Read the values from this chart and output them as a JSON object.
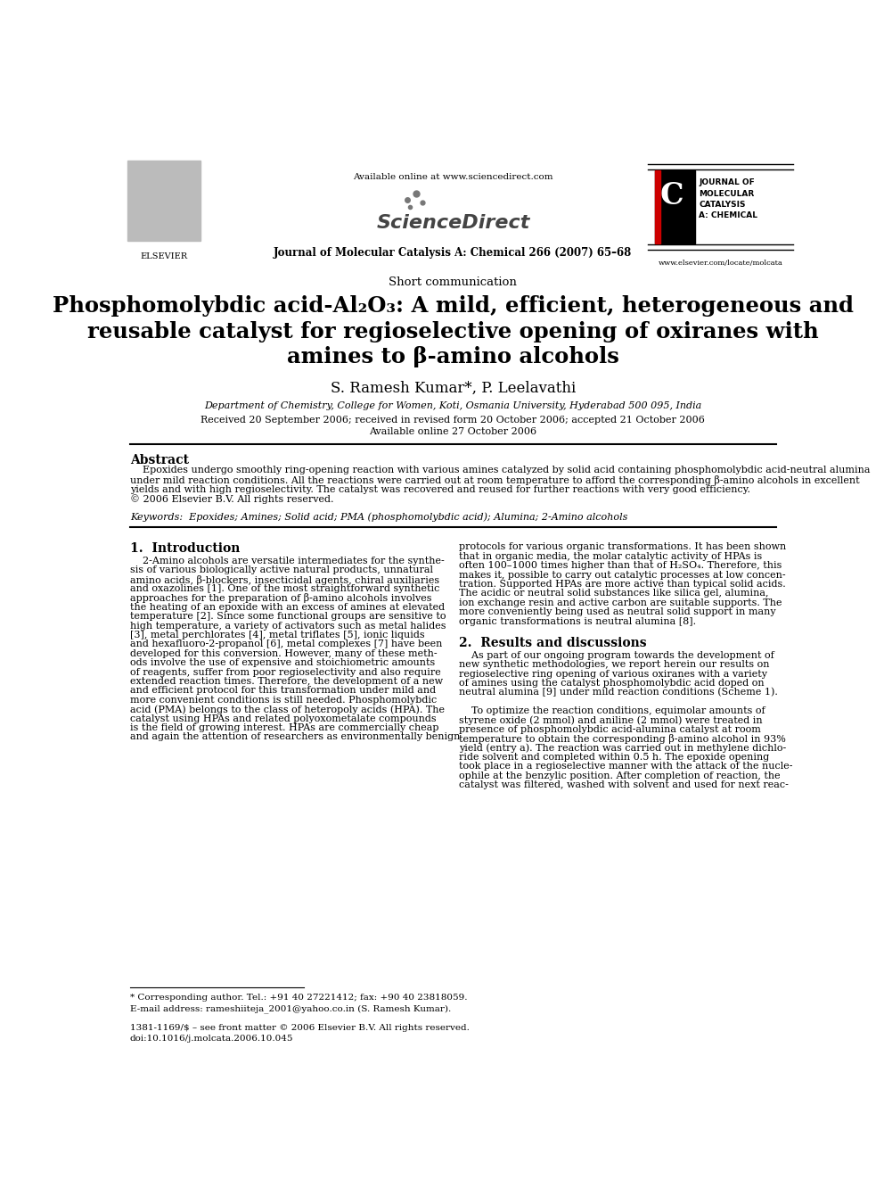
{
  "page_width": 9.92,
  "page_height": 13.23,
  "bg_color": "#ffffff",
  "header": {
    "available_online": "Available online at www.sciencedirect.com",
    "journal_line": "Journal of Molecular Catalysis A: Chemical 266 (2007) 65–68",
    "elsevier_label": "ELSEVIER",
    "journal_label_lines": [
      "JOURNAL OF",
      "MOLECULAR",
      "CATALYSIS",
      "A: CHEMICAL"
    ],
    "website": "www.elsevier.com/locate/molcata"
  },
  "article_type": "Short communication",
  "title_line1": "Phosphomolybdic acid-Al₂O₃: A mild, efficient, heterogeneous and",
  "title_line2": "reusable catalyst for regioselective opening of oxiranes with",
  "title_line3": "amines to β-amino alcohols",
  "authors": "S. Ramesh Kumar*, P. Leelavathi",
  "affiliation": "Department of Chemistry, College for Women, Koti, Osmania University, Hyderabad 500 095, India",
  "received": "Received 20 September 2006; received in revised form 20 October 2006; accepted 21 October 2006",
  "available": "Available online 27 October 2006",
  "abstract_title": "Abstract",
  "abstract_line1": "    Epoxides undergo smoothly ring-opening reaction with various amines catalyzed by solid acid containing phosphomolybdic acid-neutral alumina",
  "abstract_line2": "under mild reaction conditions. All the reactions were carried out at room temperature to afford the corresponding β-amino alcohols in excellent",
  "abstract_line3": "yields and with high regioselectivity. The catalyst was recovered and reused for further reactions with very good efficiency.",
  "abstract_line4": "© 2006 Elsevier B.V. All rights reserved.",
  "keywords": "Keywords:  Epoxides; Amines; Solid acid; PMA (phosphomolybdic acid); Alumina; 2-Amino alcohols",
  "section1_title": "1.  Introduction",
  "col1_lines": [
    "    2-Amino alcohols are versatile intermediates for the synthe-",
    "sis of various biologically active natural products, unnatural",
    "amino acids, β-blockers, insecticidal agents, chiral auxiliaries",
    "and oxazolines [1]. One of the most straightforward synthetic",
    "approaches for the preparation of β-amino alcohols involves",
    "the heating of an epoxide with an excess of amines at elevated",
    "temperature [2]. Since some functional groups are sensitive to",
    "high temperature, a variety of activators such as metal halides",
    "[3], metal perchlorates [4], metal triflates [5], ionic liquids",
    "and hexafluoro-2-propanol [6], metal complexes [7] have been",
    "developed for this conversion. However, many of these meth-",
    "ods involve the use of expensive and stoichiometric amounts",
    "of reagents, suffer from poor regioselectivity and also require",
    "extended reaction times. Therefore, the development of a new",
    "and efficient protocol for this transformation under mild and",
    "more convenient conditions is still needed. Phosphomolybdic",
    "acid (PMA) belongs to the class of heteropoly acids (HPA). The",
    "catalyst using HPAs and related polyoxometalate compounds",
    "is the field of growing interest. HPAs are commercially cheap",
    "and again the attention of researchers as environmentally benign"
  ],
  "col2_intro_lines": [
    "protocols for various organic transformations. It has been shown",
    "that in organic media, the molar catalytic activity of HPAs is",
    "often 100–1000 times higher than that of H₂SO₄. Therefore, this",
    "makes it, possible to carry out catalytic processes at low concen-",
    "tration. Supported HPAs are more active than typical solid acids.",
    "The acidic or neutral solid substances like silica gel, alumina,",
    "ion exchange resin and active carbon are suitable supports. The",
    "more conveniently being used as neutral solid support in many",
    "organic transformations is neutral alumina [8]."
  ],
  "section2_title": "2.  Results and discussions",
  "col2_sec2_lines": [
    "    As part of our ongoing program towards the development of",
    "new synthetic methodologies, we report herein our results on",
    "regioselective ring opening of various oxiranes with a variety",
    "of amines using the catalyst phosphomolybdic acid doped on",
    "neutral alumina [9] under mild reaction conditions (Scheme 1).",
    "",
    "    To optimize the reaction conditions, equimolar amounts of",
    "styrene oxide (2 mmol) and aniline (2 mmol) were treated in",
    "presence of phosphomolybdic acid-alumina catalyst at room",
    "temperature to obtain the corresponding β-amino alcohol in 93%",
    "yield (entry a). The reaction was carried out in methylene dichlo-",
    "ride solvent and completed within 0.5 h. The epoxide opening",
    "took place in a regioselective manner with the attack of the nucle-",
    "ophile at the benzylic position. After completion of reaction, the",
    "catalyst was filtered, washed with solvent and used for next reac-"
  ],
  "footnote_star": "* Corresponding author. Tel.: +91 40 27221412; fax: +90 40 23818059.",
  "footnote_email": "E-mail address: rameshiiteja_2001@yahoo.co.in (S. Ramesh Kumar).",
  "footer_issn": "1381-1169/$ – see front matter © 2006 Elsevier B.V. All rights reserved.",
  "footer_doi": "doi:10.1016/j.molcata.2006.10.045",
  "text_color": "#000000",
  "link_color": "#0000cc"
}
